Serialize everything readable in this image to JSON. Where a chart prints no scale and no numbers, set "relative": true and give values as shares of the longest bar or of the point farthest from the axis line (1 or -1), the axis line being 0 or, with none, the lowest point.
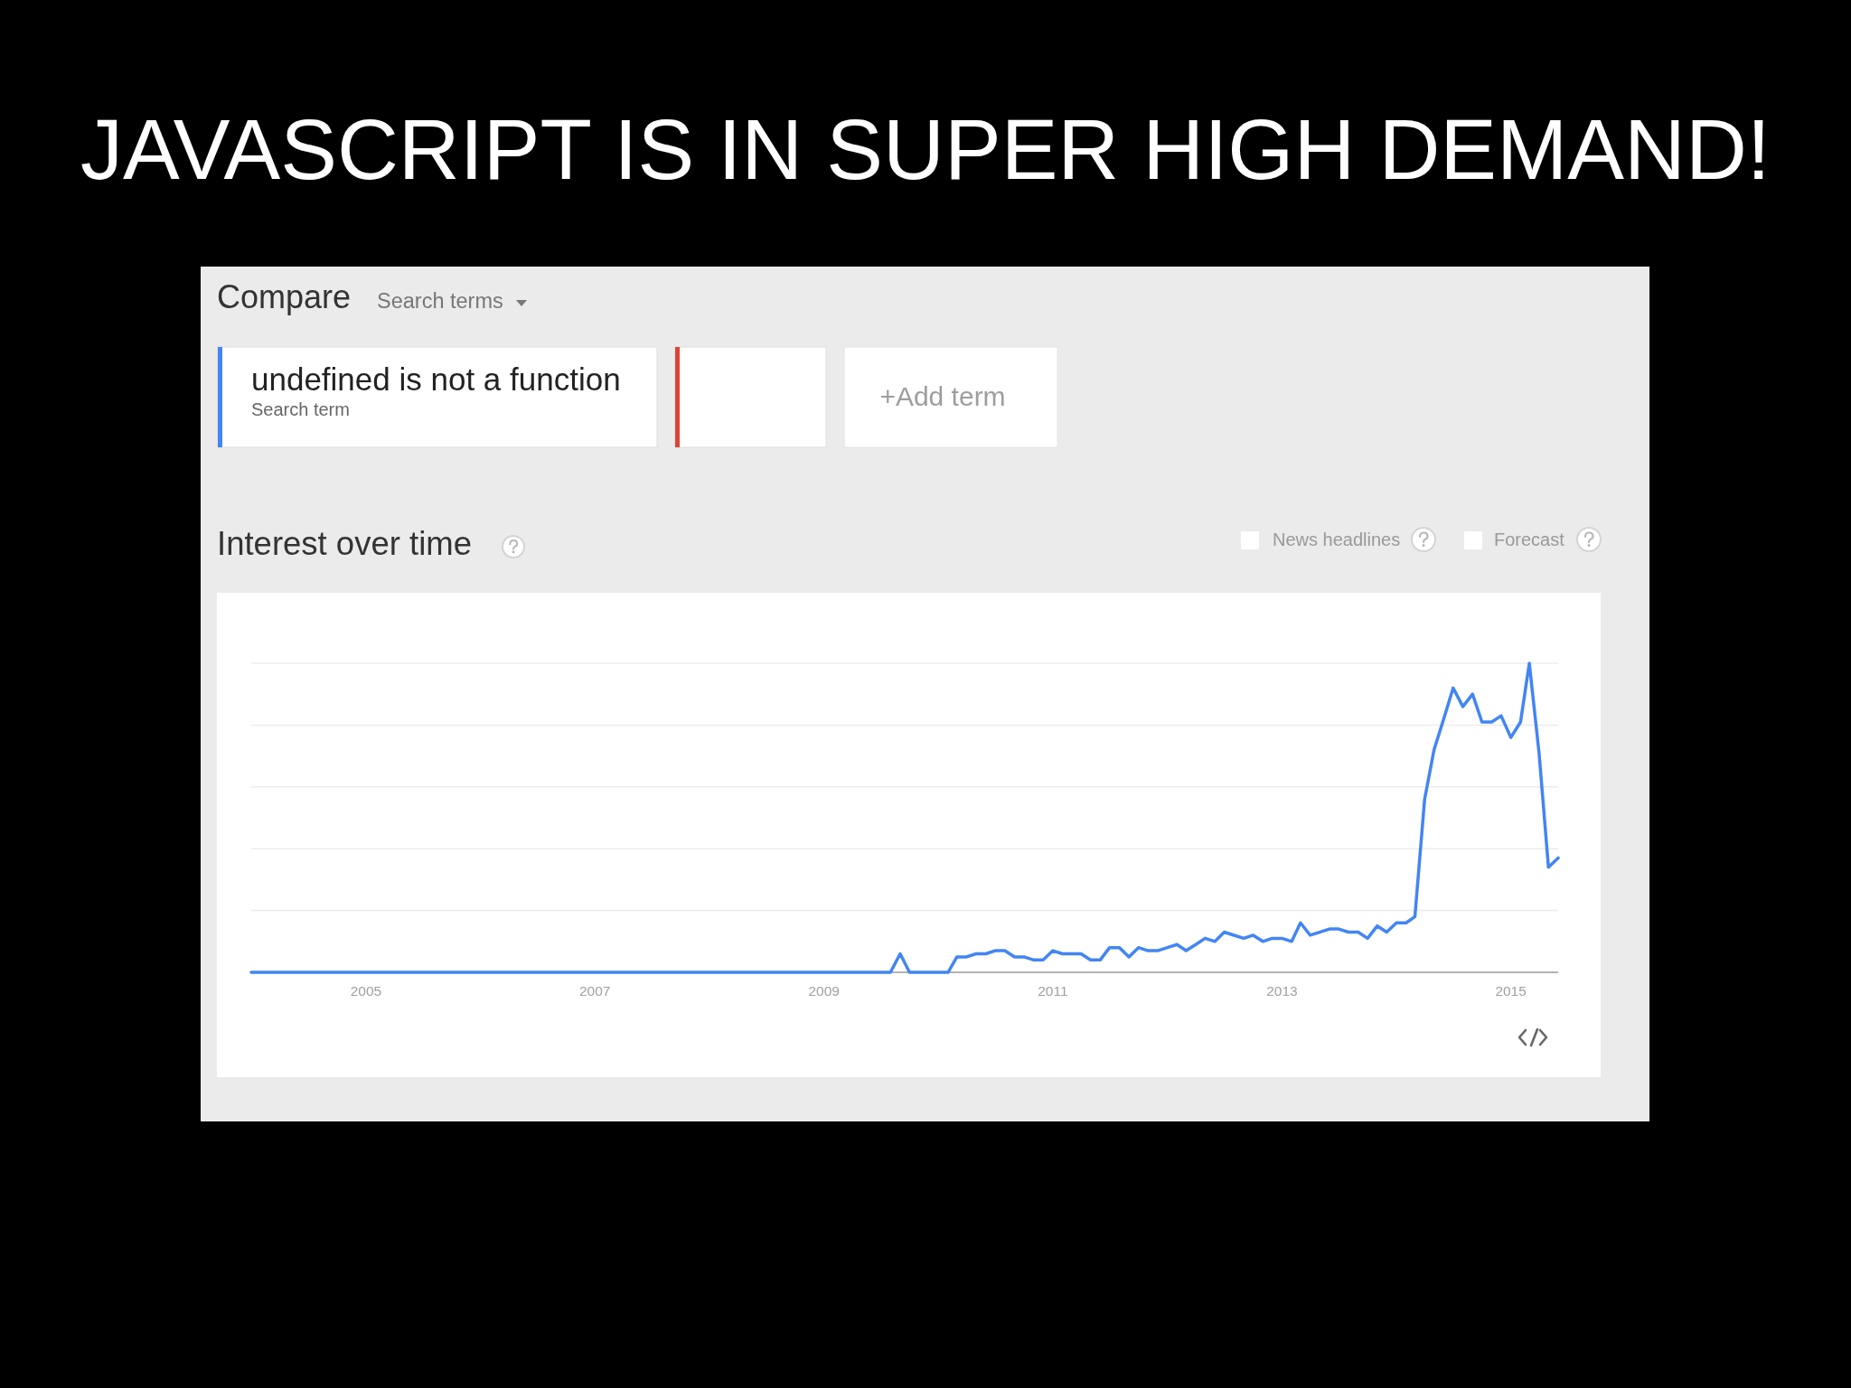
{
  "chart_data": {
    "type": "line",
    "title": "JAVASCRIPT IS IN SUPER HIGH DEMAND!",
    "subtitle": "Interest over time",
    "annotations": [
      "Compare",
      "Search terms",
      "Search term",
      "+Add term",
      "News headlines",
      "Forecast"
    ],
    "relative": true,
    "grid": "y",
    "legend": "top left",
    "xlim": [
      "2004-01",
      "2015-06"
    ],
    "xticks": [
      "2005",
      "2007",
      "2009",
      "2011",
      "2013",
      "2015"
    ],
    "x": [
      "2004-01",
      "2009-08",
      "2009-09",
      "2009-10",
      "2010-02",
      "2010-03",
      "2010-04",
      "2010-05",
      "2010-06",
      "2010-07",
      "2010-08",
      "2010-09",
      "2010-10",
      "2010-11",
      "2010-12",
      "2011-01",
      "2011-02",
      "2011-03",
      "2011-04",
      "2011-05",
      "2011-06",
      "2011-07",
      "2011-08",
      "2011-09",
      "2011-10",
      "2011-11",
      "2011-12",
      "2012-01",
      "2012-02",
      "2012-03",
      "2012-04",
      "2012-05",
      "2012-06",
      "2012-07",
      "2012-08",
      "2012-09",
      "2012-10",
      "2012-11",
      "2012-12",
      "2013-01",
      "2013-02",
      "2013-03",
      "2013-04",
      "2013-05",
      "2013-06",
      "2013-07",
      "2013-08",
      "2013-09",
      "2013-10",
      "2013-11",
      "2013-12",
      "2014-01",
      "2014-02",
      "2014-03",
      "2014-04",
      "2014-05",
      "2014-06",
      "2014-07",
      "2014-08",
      "2014-09",
      "2014-10",
      "2014-11",
      "2014-12",
      "2015-01",
      "2015-02",
      "2015-03",
      "2015-04",
      "2015-05",
      "2015-06"
    ],
    "series": [
      {
        "name": "undefined is not a function",
        "color": "#4285f4",
        "values": [
          0,
          0,
          0.06,
          0,
          0,
          0.05,
          0.05,
          0.06,
          0.06,
          0.07,
          0.07,
          0.05,
          0.05,
          0.04,
          0.04,
          0.07,
          0.06,
          0.06,
          0.06,
          0.04,
          0.04,
          0.08,
          0.08,
          0.05,
          0.08,
          0.07,
          0.07,
          0.08,
          0.09,
          0.07,
          0.09,
          0.11,
          0.1,
          0.13,
          0.12,
          0.11,
          0.12,
          0.1,
          0.11,
          0.11,
          0.1,
          0.16,
          0.12,
          0.13,
          0.14,
          0.14,
          0.13,
          0.13,
          0.11,
          0.15,
          0.13,
          0.16,
          0.16,
          0.18,
          0.56,
          0.72,
          0.82,
          0.92,
          0.86,
          0.9,
          0.81,
          0.81,
          0.83,
          0.76,
          0.81,
          1,
          0.71,
          0.34,
          0.37
        ]
      }
    ]
  }
}
